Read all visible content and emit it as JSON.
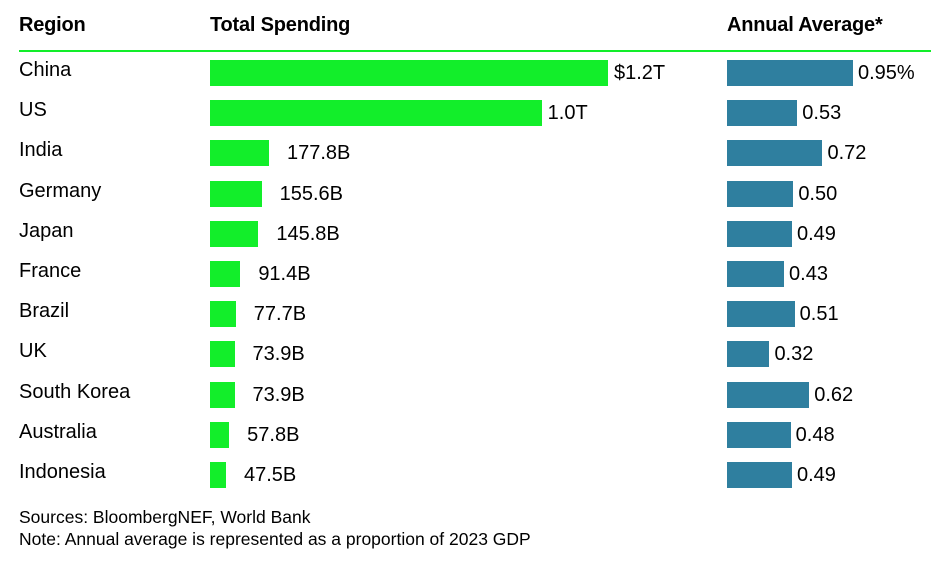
{
  "colors": {
    "total_bar": "#12ee2a",
    "annual_bar": "#2f7f9f",
    "rule": "#12ee2a"
  },
  "header": {
    "region": "Region",
    "total": "Total Spending",
    "annual": "Annual Average*"
  },
  "chart_data": {
    "type": "bar",
    "title": "",
    "categories": [
      "China",
      "US",
      "India",
      "Germany",
      "Japan",
      "France",
      "Brazil",
      "UK",
      "South Korea",
      "Australia",
      "Indonesia"
    ],
    "series": [
      {
        "name": "Total Spending",
        "unit": "USD billions",
        "values": [
          1200,
          1000,
          177.8,
          155.6,
          145.8,
          91.4,
          77.7,
          73.9,
          73.9,
          57.8,
          47.5
        ],
        "labels": [
          "$1.2T",
          "1.0T",
          "177.8B",
          "155.6B",
          "145.8B",
          "91.4B",
          "77.7B",
          "73.9B",
          "73.9B",
          "57.8B",
          "47.5B"
        ]
      },
      {
        "name": "Annual Average*",
        "unit": "% of 2023 GDP",
        "values": [
          0.95,
          0.53,
          0.72,
          0.5,
          0.49,
          0.43,
          0.51,
          0.32,
          0.62,
          0.48,
          0.49
        ],
        "labels": [
          "0.95%",
          "0.53",
          "0.72",
          "0.50",
          "0.49",
          "0.43",
          "0.51",
          "0.32",
          "0.62",
          "0.48",
          "0.49"
        ]
      }
    ]
  },
  "footer": {
    "sources": "Sources: BloombergNEF, World Bank",
    "note": "Note: Annual average is represented as a proportion of 2023 GDP"
  }
}
